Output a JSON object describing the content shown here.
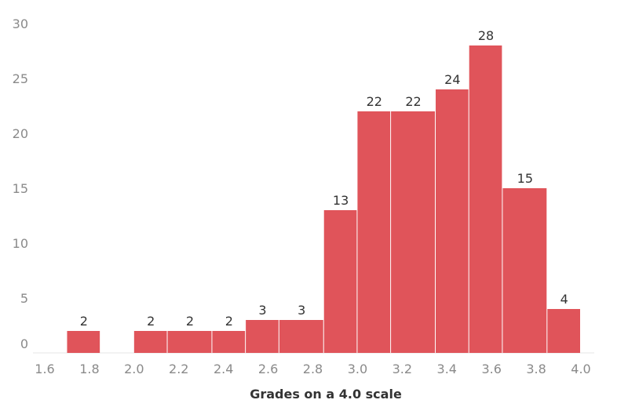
{
  "chart_data": {
    "type": "bar",
    "xlabel": "Grades on a 4.0 scale",
    "ylabel": "",
    "ylim": [
      0,
      30
    ],
    "xlim": [
      1.6,
      4.0
    ],
    "grid": false,
    "bar_color": "#e0545a",
    "bins": [
      {
        "x0": 1.7,
        "x1": 1.85,
        "value": 2
      },
      {
        "x0": 2.0,
        "x1": 2.15,
        "value": 2
      },
      {
        "x0": 2.15,
        "x1": 2.35,
        "value": 2
      },
      {
        "x0": 2.35,
        "x1": 2.5,
        "value": 2
      },
      {
        "x0": 2.5,
        "x1": 2.65,
        "value": 3
      },
      {
        "x0": 2.65,
        "x1": 2.85,
        "value": 3
      },
      {
        "x0": 2.85,
        "x1": 3.0,
        "value": 13
      },
      {
        "x0": 3.0,
        "x1": 3.15,
        "value": 22
      },
      {
        "x0": 3.15,
        "x1": 3.35,
        "value": 22
      },
      {
        "x0": 3.35,
        "x1": 3.5,
        "value": 24
      },
      {
        "x0": 3.5,
        "x1": 3.65,
        "value": 28
      },
      {
        "x0": 3.65,
        "x1": 3.85,
        "value": 15
      },
      {
        "x0": 3.85,
        "x1": 4.0,
        "value": 4
      }
    ],
    "x_ticks": [
      "1.6",
      "1.8",
      "2.0",
      "2.2",
      "2.4",
      "2.6",
      "2.8",
      "3.0",
      "3.2",
      "3.4",
      "3.6",
      "3.8",
      "4.0"
    ],
    "y_ticks": [
      "0",
      "5",
      "10",
      "15",
      "20",
      "25",
      "30"
    ]
  }
}
